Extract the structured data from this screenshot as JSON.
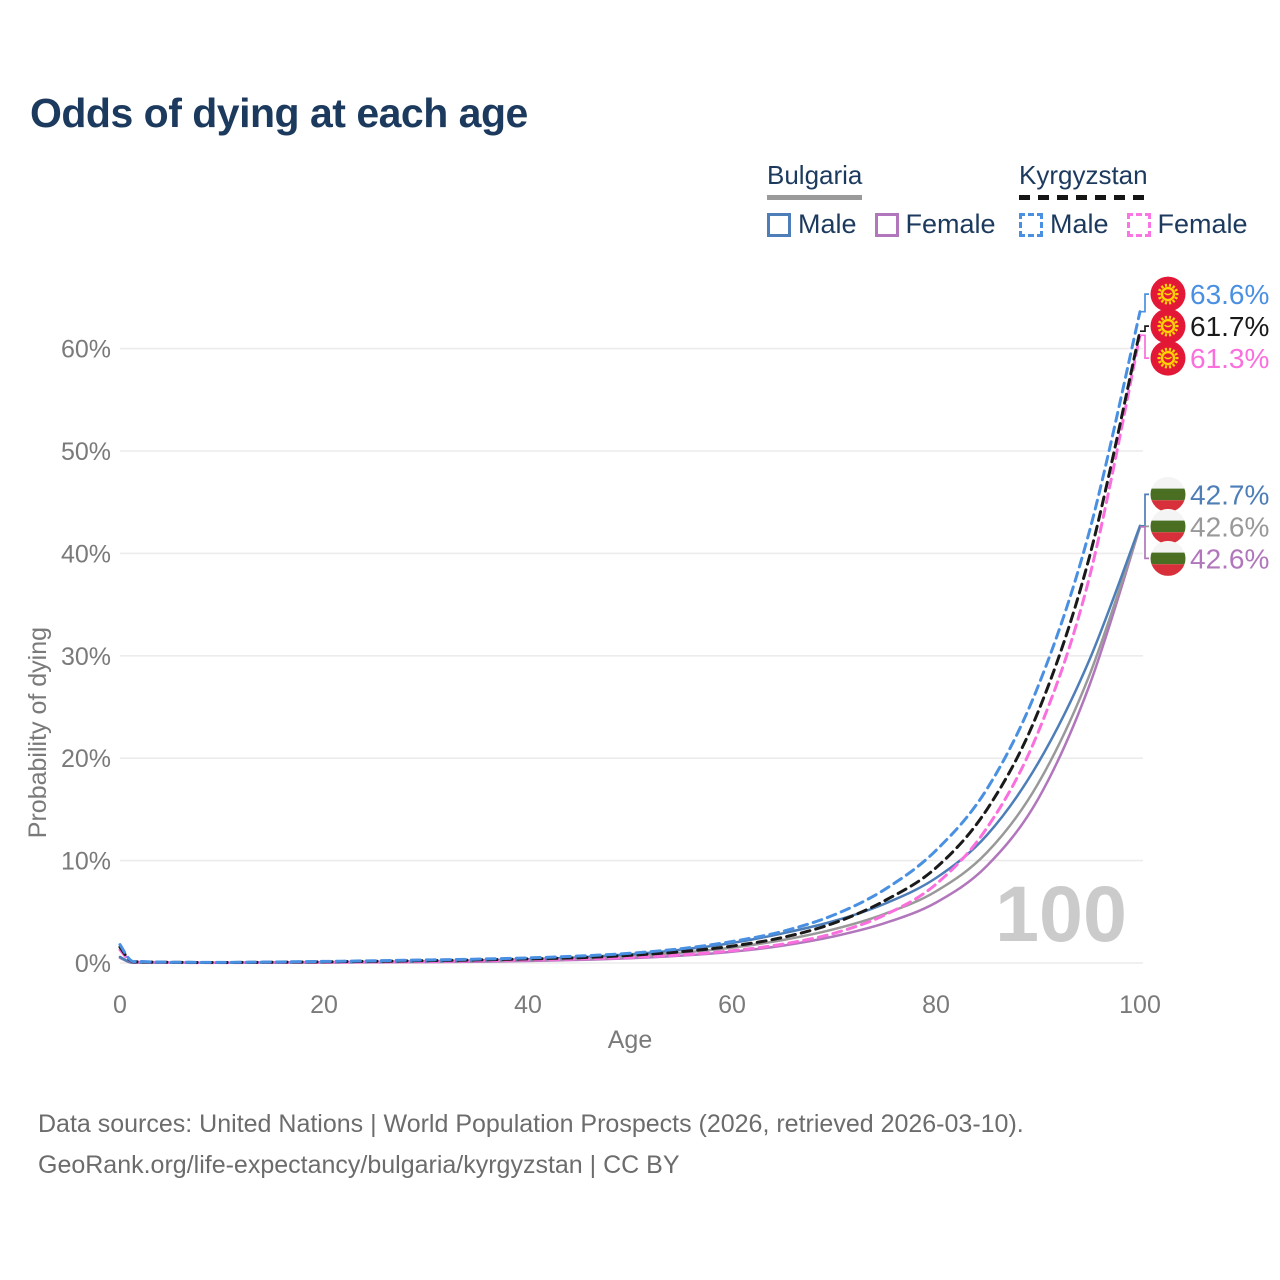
{
  "title": "Odds of dying at each age",
  "legend": {
    "groups": [
      {
        "country": "Bulgaria",
        "style": "solid",
        "items": [
          {
            "label": "Male",
            "color": "#4d7eb8"
          },
          {
            "label": "Female",
            "color": "#b176bb"
          }
        ]
      },
      {
        "country": "Kyrgyzstan",
        "style": "dashed",
        "items": [
          {
            "label": "Male",
            "color": "#4a90e2"
          },
          {
            "label": "Female",
            "color": "#fb74e4"
          }
        ]
      }
    ]
  },
  "watermark": "100",
  "footer": {
    "line1": "Data sources: United Nations | World Population Prospects (2026, retrieved 2026-03-10).",
    "line2": "GeoRank.org/life-expectancy/bulgaria/kyrgyzstan | CC BY"
  },
  "flags": {
    "bulgaria": {
      "white": "#f4f4f4",
      "green": "#4a6e22",
      "red": "#d8303a"
    },
    "kyrgyzstan": {
      "red": "#e31837",
      "yellow": "#ffd400"
    }
  },
  "colors": {
    "grid": "#ececec",
    "tick_text": "#7a7a7a",
    "watermark": "#cbcbcb",
    "title_navy": "#1c3a5e"
  },
  "chart_data": {
    "type": "line",
    "title": "Odds of dying at each age",
    "xlabel": "Age",
    "ylabel": "Probability of dying",
    "xlim": [
      0,
      100
    ],
    "ylim": [
      0,
      70
    ],
    "x_ticks": [
      0,
      20,
      40,
      60,
      80,
      100
    ],
    "y_tick_labels": [
      "0%",
      "10%",
      "20%",
      "30%",
      "40%",
      "50%",
      "60%"
    ],
    "grid": true,
    "legend_position": "top-right",
    "ages": [
      0,
      1,
      2,
      5,
      10,
      15,
      20,
      25,
      30,
      35,
      40,
      45,
      50,
      55,
      60,
      65,
      70,
      75,
      80,
      85,
      90,
      95,
      100
    ],
    "series": [
      {
        "name": "Kyrgyzstan Male",
        "country": "Kyrgyzstan",
        "sex": "Male",
        "flag": "kyrgyzstan",
        "color": "#4a90e2",
        "dash": true,
        "end_label": "63.6%",
        "end_value": 63.6,
        "values": [
          1.8,
          0.3,
          0.15,
          0.08,
          0.06,
          0.1,
          0.16,
          0.22,
          0.3,
          0.38,
          0.5,
          0.68,
          0.95,
          1.4,
          2.1,
          3.1,
          4.7,
          7.2,
          11.0,
          17.0,
          27.0,
          42.0,
          63.6
        ]
      },
      {
        "name": "Kyrgyzstan Both sexes",
        "country": "Kyrgyzstan",
        "sex": "Both",
        "flag": "kyrgyzstan",
        "color": "#1a1a1a",
        "dash": true,
        "end_label": "61.7%",
        "end_value": 61.7,
        "values": [
          1.55,
          0.25,
          0.12,
          0.07,
          0.05,
          0.08,
          0.12,
          0.17,
          0.23,
          0.3,
          0.4,
          0.52,
          0.75,
          1.1,
          1.65,
          2.5,
          3.9,
          6.1,
          9.3,
          15.0,
          24.5,
          39.5,
          61.7
        ]
      },
      {
        "name": "Kyrgyzstan Female",
        "country": "Kyrgyzstan",
        "sex": "Female",
        "flag": "kyrgyzstan",
        "color": "#fa6fdd",
        "dash": true,
        "end_label": "61.3%",
        "end_value": 61.3,
        "values": [
          1.3,
          0.2,
          0.1,
          0.05,
          0.04,
          0.06,
          0.08,
          0.11,
          0.15,
          0.21,
          0.3,
          0.4,
          0.55,
          0.8,
          1.2,
          1.85,
          2.9,
          4.7,
          7.7,
          13.2,
          22.5,
          37.5,
          61.3
        ]
      },
      {
        "name": "Bulgaria Male",
        "country": "Bulgaria",
        "sex": "Male",
        "flag": "bulgaria",
        "color": "#4d7eb8",
        "dash": false,
        "end_label": "42.7%",
        "end_value": 42.7,
        "values": [
          0.6,
          0.08,
          0.05,
          0.03,
          0.03,
          0.05,
          0.08,
          0.11,
          0.16,
          0.24,
          0.36,
          0.55,
          0.85,
          1.3,
          1.95,
          2.9,
          4.1,
          5.8,
          8.3,
          12.5,
          19.5,
          29.5,
          42.7
        ]
      },
      {
        "name": "Bulgaria Both sexes",
        "country": "Bulgaria",
        "sex": "Both",
        "flag": "bulgaria",
        "color": "#999999",
        "dash": false,
        "end_label": "42.6%",
        "end_value": 42.6,
        "values": [
          0.55,
          0.07,
          0.04,
          0.03,
          0.02,
          0.04,
          0.06,
          0.09,
          0.13,
          0.19,
          0.28,
          0.42,
          0.65,
          1.0,
          1.5,
          2.25,
          3.3,
          4.8,
          7.0,
          10.8,
          17.5,
          28.0,
          42.6
        ]
      },
      {
        "name": "Bulgaria Female",
        "country": "Bulgaria",
        "sex": "Female",
        "flag": "bulgaria",
        "color": "#b176bb",
        "dash": false,
        "end_label": "42.6%",
        "end_value": 42.6,
        "values": [
          0.5,
          0.06,
          0.03,
          0.02,
          0.02,
          0.03,
          0.04,
          0.06,
          0.09,
          0.13,
          0.2,
          0.3,
          0.47,
          0.72,
          1.1,
          1.7,
          2.6,
          3.9,
          5.9,
          9.5,
          16.0,
          27.0,
          42.6
        ]
      }
    ]
  }
}
